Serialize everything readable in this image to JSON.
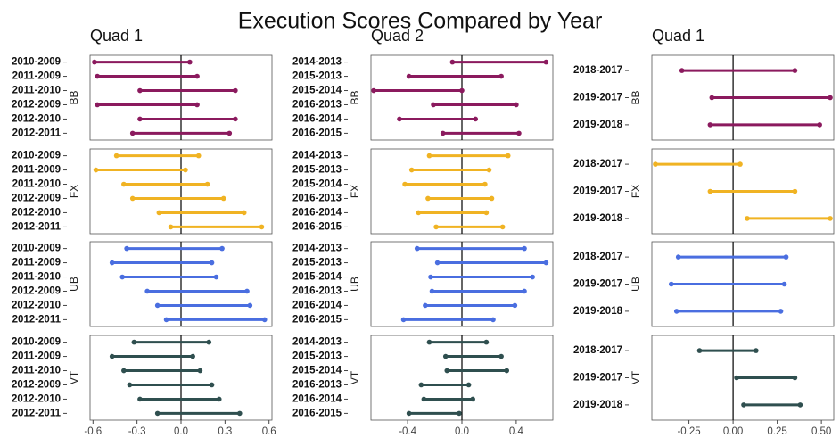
{
  "title": "Execution Scores Compared by Year",
  "colors": {
    "BB": "#8b1a5e",
    "FX": "#f0b323",
    "UB": "#4a6ee0",
    "VT": "#2f4f4f"
  },
  "chart_data": {
    "type": "dumbbell",
    "title": "Execution Scores Compared by Year",
    "grid": false,
    "panels": [
      {
        "column_title": "Quad 1",
        "x_ticks": [
          "-0.6",
          "-0.3",
          "0.0",
          "0.3",
          "0.6"
        ],
        "xlim": [
          -0.62,
          0.62
        ],
        "rows": [
          {
            "event": "BB",
            "pairs": [
              {
                "label": "2010-2009",
                "start": -0.59,
                "end": 0.06
              },
              {
                "label": "2011-2009",
                "start": -0.57,
                "end": 0.11
              },
              {
                "label": "2011-2010",
                "start": -0.28,
                "end": 0.37
              },
              {
                "label": "2012-2009",
                "start": -0.57,
                "end": 0.11
              },
              {
                "label": "2012-2010",
                "start": -0.28,
                "end": 0.37
              },
              {
                "label": "2012-2011",
                "start": -0.33,
                "end": 0.33
              }
            ]
          },
          {
            "event": "FX",
            "pairs": [
              {
                "label": "2010-2009",
                "start": -0.44,
                "end": 0.12
              },
              {
                "label": "2011-2009",
                "start": -0.58,
                "end": 0.03
              },
              {
                "label": "2011-2010",
                "start": -0.39,
                "end": 0.18
              },
              {
                "label": "2012-2009",
                "start": -0.33,
                "end": 0.29
              },
              {
                "label": "2012-2010",
                "start": -0.15,
                "end": 0.43
              },
              {
                "label": "2012-2011",
                "start": -0.07,
                "end": 0.55
              }
            ]
          },
          {
            "event": "UB",
            "pairs": [
              {
                "label": "2010-2009",
                "start": -0.37,
                "end": 0.28
              },
              {
                "label": "2011-2009",
                "start": -0.47,
                "end": 0.21
              },
              {
                "label": "2011-2010",
                "start": -0.4,
                "end": 0.24
              },
              {
                "label": "2012-2009",
                "start": -0.23,
                "end": 0.45
              },
              {
                "label": "2012-2010",
                "start": -0.16,
                "end": 0.47
              },
              {
                "label": "2012-2011",
                "start": -0.1,
                "end": 0.57
              }
            ]
          },
          {
            "event": "VT",
            "pairs": [
              {
                "label": "2010-2009",
                "start": -0.32,
                "end": 0.19
              },
              {
                "label": "2011-2009",
                "start": -0.47,
                "end": 0.08
              },
              {
                "label": "2011-2010",
                "start": -0.39,
                "end": 0.13
              },
              {
                "label": "2012-2009",
                "start": -0.35,
                "end": 0.21
              },
              {
                "label": "2012-2010",
                "start": -0.28,
                "end": 0.26
              },
              {
                "label": "2012-2011",
                "start": -0.16,
                "end": 0.4
              }
            ]
          }
        ]
      },
      {
        "column_title": "Quad 2",
        "x_ticks": [
          "-0.4",
          "0.0",
          "0.4"
        ],
        "xlim": [
          -0.67,
          0.67
        ],
        "rows": [
          {
            "event": "BB",
            "pairs": [
              {
                "label": "2014-2013",
                "start": -0.07,
                "end": 0.62
              },
              {
                "label": "2015-2013",
                "start": -0.39,
                "end": 0.29
              },
              {
                "label": "2015-2014",
                "start": -0.65,
                "end": 0.0
              },
              {
                "label": "2016-2013",
                "start": -0.21,
                "end": 0.4
              },
              {
                "label": "2016-2014",
                "start": -0.46,
                "end": 0.1
              },
              {
                "label": "2016-2015",
                "start": -0.14,
                "end": 0.42
              }
            ]
          },
          {
            "event": "FX",
            "pairs": [
              {
                "label": "2014-2013",
                "start": -0.24,
                "end": 0.34
              },
              {
                "label": "2015-2013",
                "start": -0.37,
                "end": 0.2
              },
              {
                "label": "2015-2014",
                "start": -0.42,
                "end": 0.17
              },
              {
                "label": "2016-2013",
                "start": -0.25,
                "end": 0.22
              },
              {
                "label": "2016-2014",
                "start": -0.32,
                "end": 0.18
              },
              {
                "label": "2016-2015",
                "start": -0.19,
                "end": 0.3
              }
            ]
          },
          {
            "event": "UB",
            "pairs": [
              {
                "label": "2014-2013",
                "start": -0.33,
                "end": 0.46
              },
              {
                "label": "2015-2013",
                "start": -0.18,
                "end": 0.62
              },
              {
                "label": "2015-2014",
                "start": -0.23,
                "end": 0.52
              },
              {
                "label": "2016-2013",
                "start": -0.22,
                "end": 0.46
              },
              {
                "label": "2016-2014",
                "start": -0.27,
                "end": 0.39
              },
              {
                "label": "2016-2015",
                "start": -0.43,
                "end": 0.23
              }
            ]
          },
          {
            "event": "VT",
            "pairs": [
              {
                "label": "2014-2013",
                "start": -0.24,
                "end": 0.18
              },
              {
                "label": "2015-2013",
                "start": -0.12,
                "end": 0.29
              },
              {
                "label": "2015-2014",
                "start": -0.11,
                "end": 0.33
              },
              {
                "label": "2016-2013",
                "start": -0.3,
                "end": 0.05
              },
              {
                "label": "2016-2014",
                "start": -0.28,
                "end": 0.08
              },
              {
                "label": "2016-2015",
                "start": -0.39,
                "end": -0.02
              }
            ]
          }
        ]
      },
      {
        "column_title": "Quad 1",
        "x_ticks": [
          "-0.25",
          "0.00",
          "0.25",
          "0.50"
        ],
        "xlim": [
          -0.46,
          0.57
        ],
        "rows": [
          {
            "event": "BB",
            "pairs": [
              {
                "label": "2018-2017",
                "start": -0.29,
                "end": 0.35
              },
              {
                "label": "2019-2017",
                "start": -0.12,
                "end": 0.55
              },
              {
                "label": "2019-2018",
                "start": -0.13,
                "end": 0.49
              }
            ]
          },
          {
            "event": "FX",
            "pairs": [
              {
                "label": "2018-2017",
                "start": -0.44,
                "end": 0.04
              },
              {
                "label": "2019-2017",
                "start": -0.13,
                "end": 0.35
              },
              {
                "label": "2019-2018",
                "start": 0.08,
                "end": 0.55
              }
            ]
          },
          {
            "event": "UB",
            "pairs": [
              {
                "label": "2018-2017",
                "start": -0.31,
                "end": 0.3
              },
              {
                "label": "2019-2017",
                "start": -0.35,
                "end": 0.29
              },
              {
                "label": "2019-2018",
                "start": -0.32,
                "end": 0.27
              }
            ]
          },
          {
            "event": "VT",
            "pairs": [
              {
                "label": "2018-2017",
                "start": -0.19,
                "end": 0.13
              },
              {
                "label": "2019-2017",
                "start": 0.02,
                "end": 0.35
              },
              {
                "label": "2019-2018",
                "start": 0.06,
                "end": 0.38
              }
            ]
          }
        ]
      }
    ]
  }
}
